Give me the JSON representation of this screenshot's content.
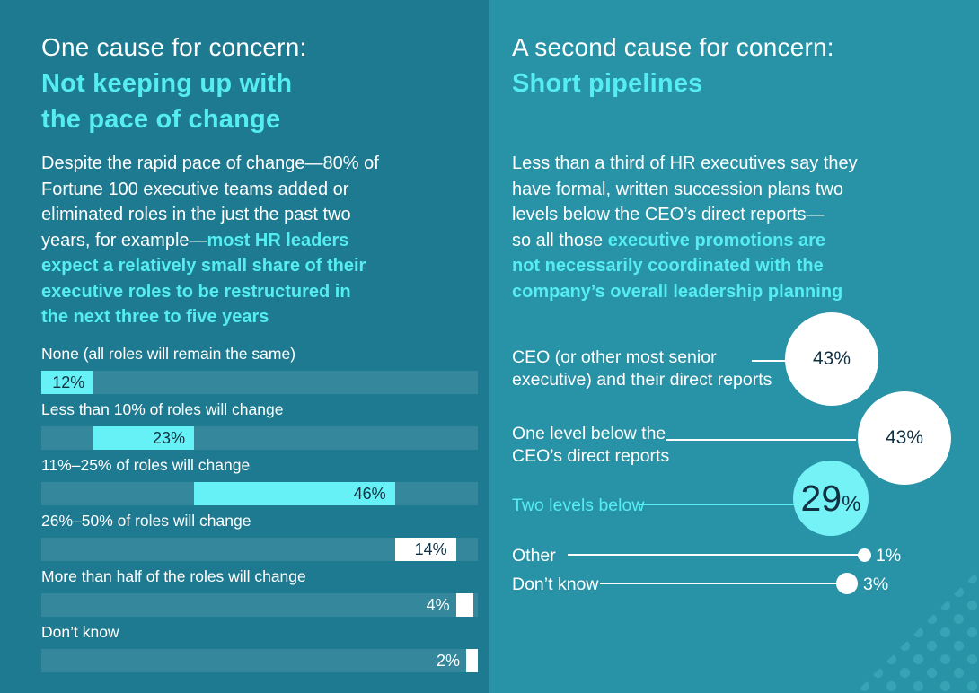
{
  "colors": {
    "left_bg": "#1E7A90",
    "right_bg": "#2892A6",
    "accent_cyan": "#55EDF1",
    "bar_cyan": "#66F1F6",
    "bubble_cyan": "#74F2F5",
    "bar_track": "#35879C",
    "dark_text": "#113042",
    "white": "#FFFFFF",
    "deco_dots": "#37A4B6"
  },
  "left_panel": {
    "title_prefix": "One cause for concern:",
    "title_bold": "Not keeping up with\nthe pace of change",
    "body_white": "Despite the rapid pace of change—80% of\nFortune 100 executive teams added or\neliminated roles in the just the past two\nyears, for example—",
    "body_accent": "most HR leaders\nexpect a relatively small share of their\nexecutive roles to be restructured in\nthe next three to five years"
  },
  "right_panel": {
    "title_prefix": "A second cause for concern:",
    "title_bold": "Short pipelines",
    "body_white": "Less than a third of HR executives say they\nhave formal, written succession plans two\nlevels below the CEO’s direct reports—\nso all those ",
    "body_accent": "executive promotions are\nnot necessarily coordinated with the\ncompany’s overall leadership planning"
  },
  "chart_data": [
    {
      "type": "bar",
      "title": "",
      "orientation": "horizontal",
      "style": "waterfall-segments-on-full-track",
      "categories": [
        "None (all roles will remain the same)",
        "Less than 10% of roles will change",
        "11%–25% of roles will change",
        "26%–50% of roles will change",
        "More than half of the roles will change",
        "Don’t know"
      ],
      "values": [
        12,
        23,
        46,
        14,
        4,
        2
      ],
      "value_labels": [
        "12%",
        "23%",
        "46%",
        "14%",
        "4%",
        "2%"
      ],
      "segment_starts": [
        0,
        12,
        35,
        81,
        95,
        98
      ],
      "segment_fills": [
        "cyan",
        "cyan",
        "cyan",
        "white",
        "white",
        "white"
      ],
      "value_label_placement": [
        "inside",
        "inside",
        "inside",
        "inside",
        "outside",
        "outside"
      ],
      "unit": "%",
      "xlim": [
        0,
        100
      ],
      "grid": false,
      "legend": false
    },
    {
      "type": "bubble",
      "title": "",
      "categories": [
        "CEO (or other most senior\nexecutive) and their direct reports",
        "One level below the\nCEO’s direct reports",
        "Two levels below",
        "Other",
        "Don’t know"
      ],
      "values": [
        43,
        43,
        29,
        1,
        3
      ],
      "value_labels": [
        "43%",
        "43%",
        "29%",
        "1%",
        "3%"
      ],
      "bubble_fills": [
        "white",
        "white",
        "cyan",
        "white",
        "white"
      ],
      "value_label_placement": [
        "inside",
        "inside",
        "inside",
        "outside",
        "outside"
      ],
      "unit": "%",
      "legend": false
    }
  ]
}
